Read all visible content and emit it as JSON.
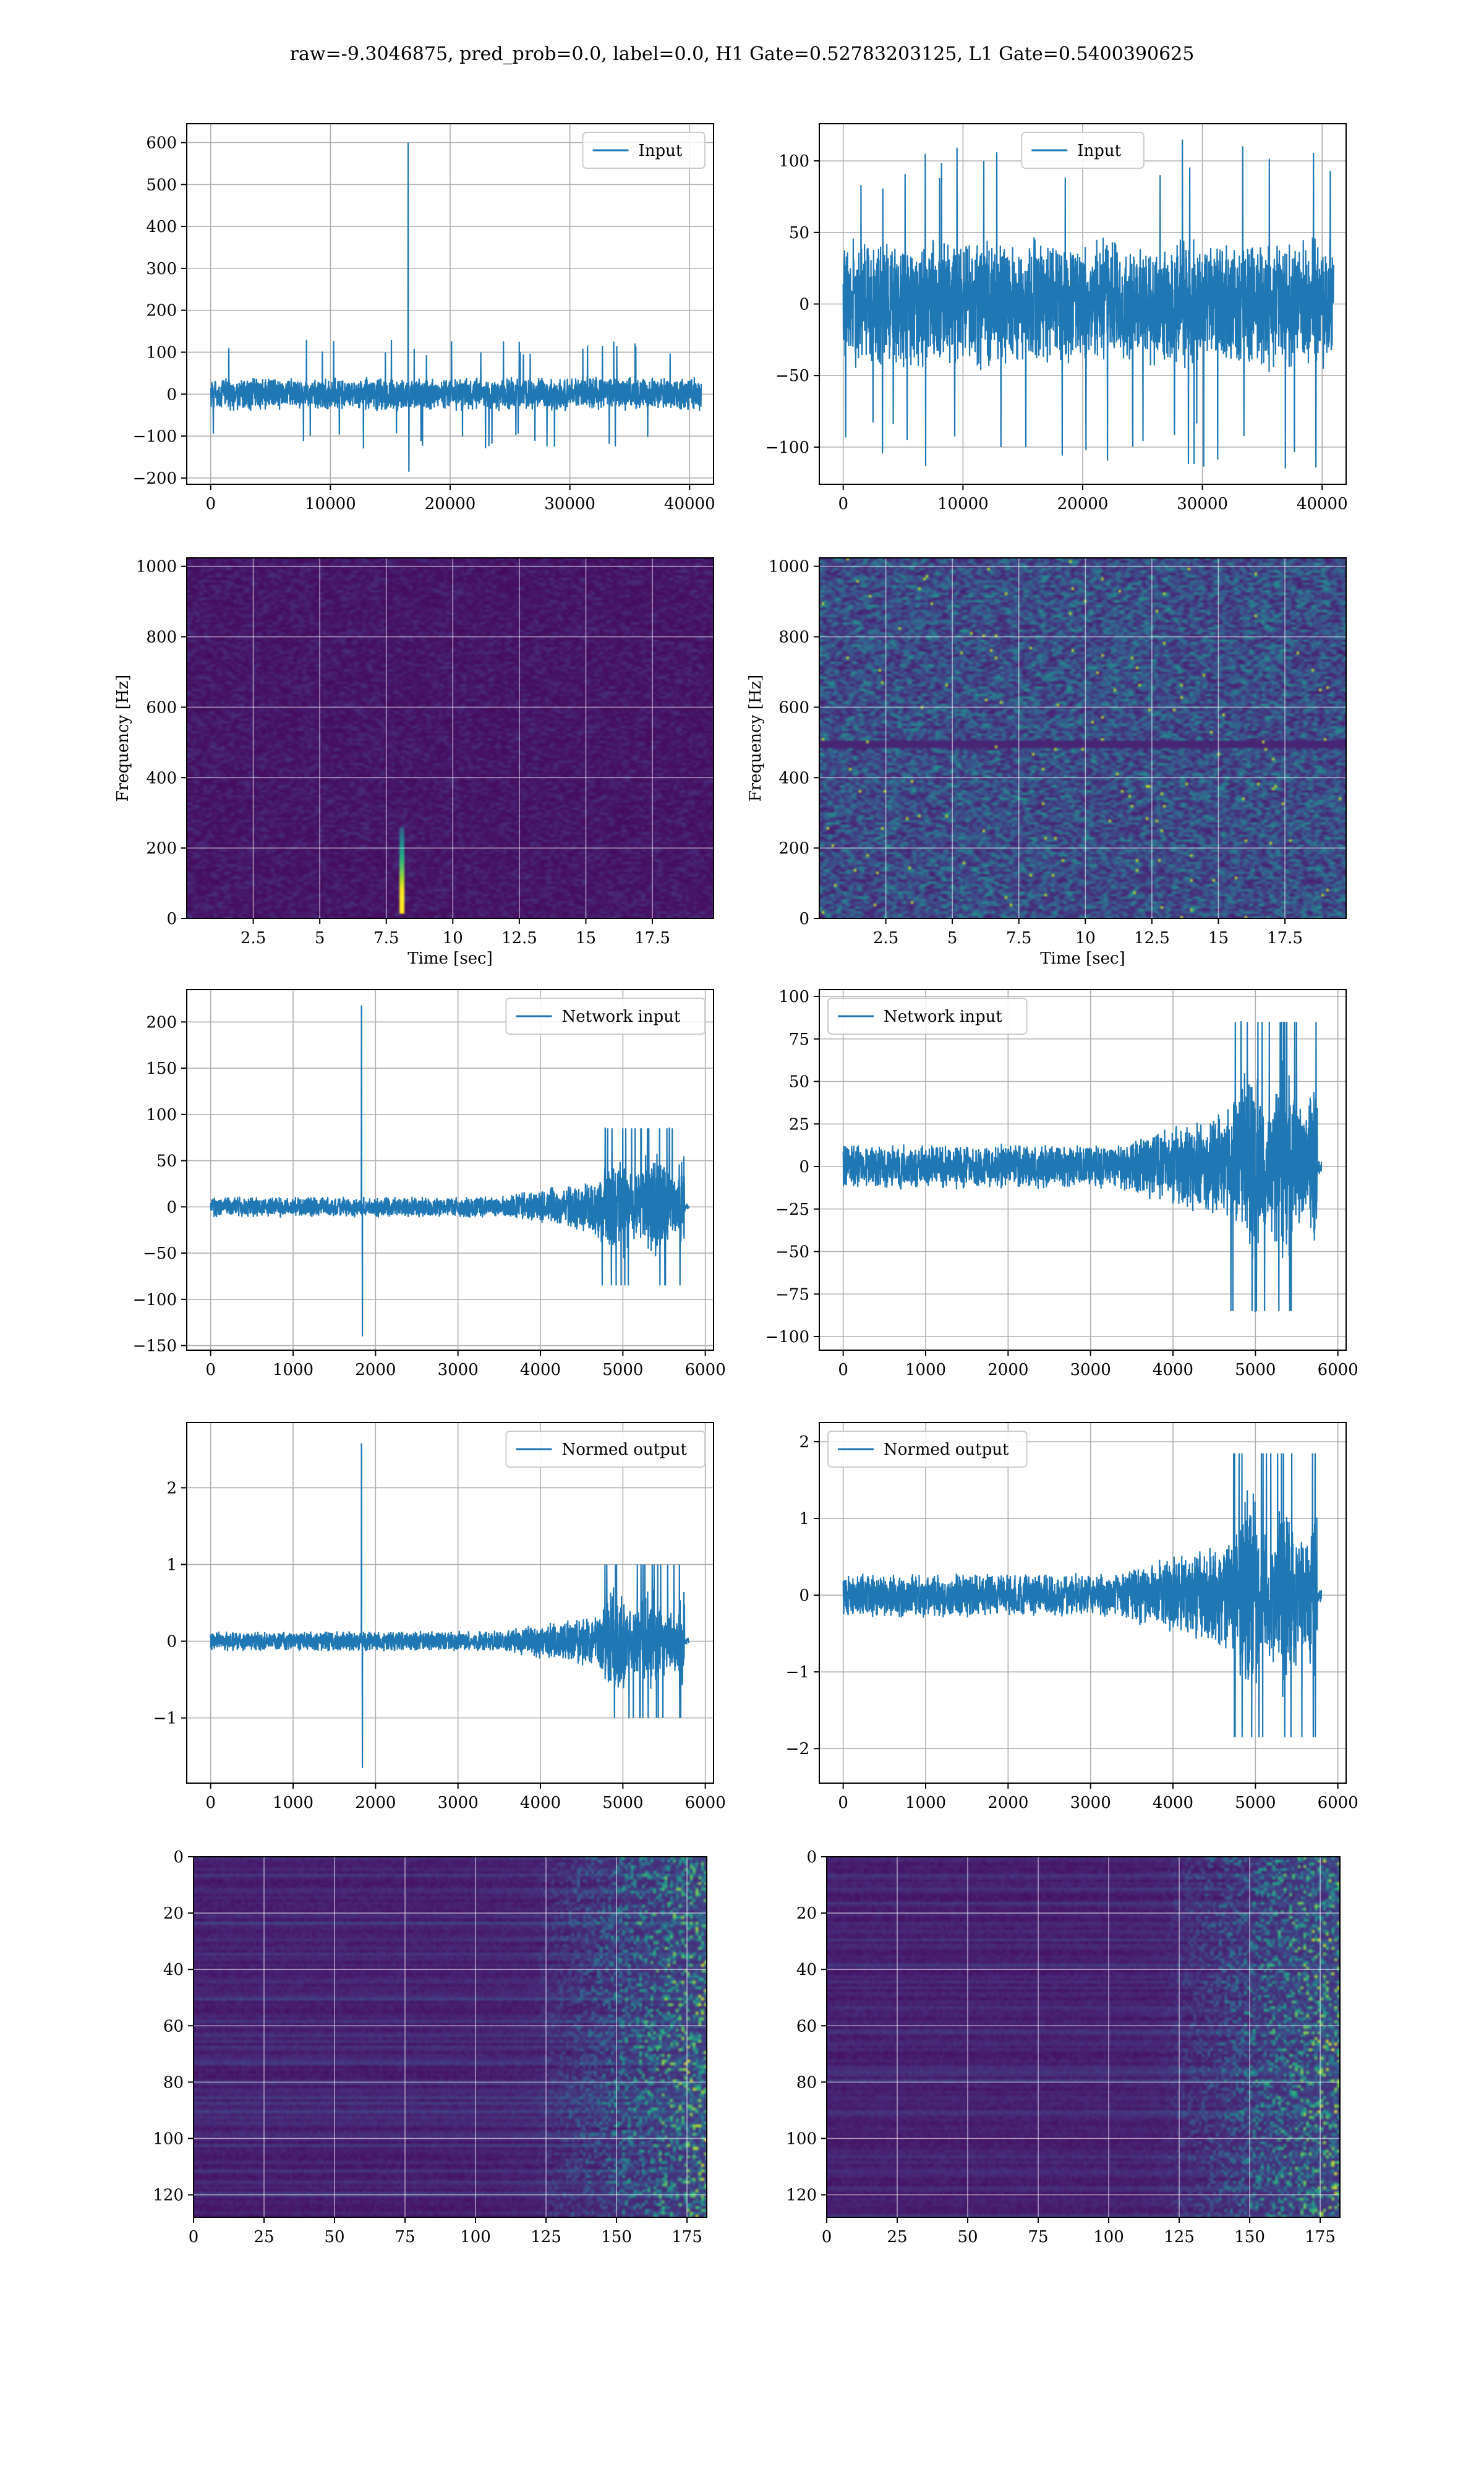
{
  "figure": {
    "suptitle": "raw=-9.3046875, pred_prob=0.0, label=0.0, H1 Gate=0.52783203125, L1 Gate=0.5400390625"
  },
  "colors": {
    "line": "#1f77b4",
    "grid": "#b0b0b0",
    "viridis_dark": "#440154",
    "viridis_mid": "#21918c",
    "viridis_light": "#fde725"
  },
  "chart_data": [
    {
      "id": "h1-input",
      "type": "line",
      "legend": "Input",
      "legend_loc": "upper right",
      "xlim": [
        -2000,
        42000
      ],
      "ylim": [
        -215,
        645
      ],
      "xticks": [
        0,
        10000,
        20000,
        30000,
        40000
      ],
      "yticks": [
        -200,
        -100,
        0,
        100,
        200,
        300,
        400,
        500,
        600
      ],
      "grid": true,
      "signal": {
        "x_range": [
          0,
          40960
        ],
        "noise_amplitude": 42,
        "peak_amplitude": 130,
        "trend": "flat",
        "spikes": [
          {
            "x": 16500,
            "y": 600
          },
          {
            "x": 16550,
            "y": -185
          }
        ]
      }
    },
    {
      "id": "l1-input",
      "type": "line",
      "legend": "Input",
      "legend_loc": "upper center",
      "xlim": [
        -2000,
        42000
      ],
      "ylim": [
        -126,
        126
      ],
      "xticks": [
        0,
        10000,
        20000,
        30000,
        40000
      ],
      "yticks": [
        -100,
        -50,
        0,
        50,
        100
      ],
      "grid": true,
      "signal": {
        "x_range": [
          0,
          40960
        ],
        "noise_amplitude": 48,
        "peak_amplitude": 115,
        "trend": "flat",
        "spikes": []
      }
    },
    {
      "id": "h1-spectrogram",
      "type": "heatmap",
      "xlabel": "Time [sec]",
      "ylabel": "Frequency [Hz]",
      "xlim": [
        0,
        19.8
      ],
      "ylim": [
        0,
        1024
      ],
      "xticks": [
        2.5,
        5.0,
        7.5,
        10.0,
        12.5,
        15.0,
        17.5
      ],
      "yticks": [
        0,
        200,
        400,
        600,
        800,
        1000
      ],
      "grid": true,
      "colormap": "viridis",
      "background_level": 0.07,
      "features": [
        {
          "kind": "vertical-streak",
          "t": 8.05,
          "f_range": [
            20,
            260
          ],
          "level": 0.95
        }
      ]
    },
    {
      "id": "l1-spectrogram",
      "type": "heatmap",
      "xlabel": "Time [sec]",
      "ylabel": "Frequency [Hz]",
      "xlim": [
        0,
        19.8
      ],
      "ylim": [
        0,
        1024
      ],
      "xticks": [
        2.5,
        5.0,
        7.5,
        10.0,
        12.5,
        15.0,
        17.5
      ],
      "yticks": [
        0,
        200,
        400,
        600,
        800,
        1000
      ],
      "grid": true,
      "colormap": "viridis",
      "background_level": 0.3,
      "features": [
        {
          "kind": "horizontal-band",
          "f": 500,
          "level": 0.1
        }
      ]
    },
    {
      "id": "h1-network-input",
      "type": "line",
      "legend": "Network input",
      "legend_loc": "upper right",
      "xlim": [
        -290,
        6100
      ],
      "ylim": [
        -155,
        235
      ],
      "xticks": [
        0,
        1000,
        2000,
        3000,
        4000,
        5000,
        6000
      ],
      "yticks": [
        -150,
        -100,
        -50,
        0,
        50,
        100,
        150,
        200
      ],
      "grid": true,
      "signal": {
        "x_range": [
          0,
          5800
        ],
        "base_amplitude": 12,
        "ramp_start": 3500,
        "burst_start": 4700,
        "burst_end": 5750,
        "burst_amplitude": 85,
        "tail_amplitude": 4,
        "spikes": [
          {
            "x": 1830,
            "y": 218
          },
          {
            "x": 1840,
            "y": -140
          }
        ]
      }
    },
    {
      "id": "l1-network-input",
      "type": "line",
      "legend": "Network input",
      "legend_loc": "upper left",
      "xlim": [
        -290,
        6100
      ],
      "ylim": [
        -108,
        104
      ],
      "xticks": [
        0,
        1000,
        2000,
        3000,
        4000,
        5000,
        6000
      ],
      "yticks": [
        -100,
        -75,
        -50,
        -25,
        0,
        25,
        50,
        75,
        100
      ],
      "grid": true,
      "signal": {
        "x_range": [
          0,
          5800
        ],
        "base_amplitude": 14,
        "ramp_start": 3300,
        "burst_start": 4700,
        "burst_end": 5750,
        "burst_amplitude": 85,
        "tail_amplitude": 5,
        "spikes": []
      }
    },
    {
      "id": "h1-normed-output",
      "type": "line",
      "legend": "Normed output",
      "legend_loc": "upper right",
      "xlim": [
        -290,
        6100
      ],
      "ylim": [
        -1.85,
        2.85
      ],
      "xticks": [
        0,
        1000,
        2000,
        3000,
        4000,
        5000,
        6000
      ],
      "yticks": [
        -1,
        0,
        1,
        2
      ],
      "grid": true,
      "signal": {
        "x_range": [
          0,
          5800
        ],
        "base_amplitude": 0.14,
        "ramp_start": 3500,
        "burst_start": 4700,
        "burst_end": 5750,
        "burst_amplitude": 1.0,
        "tail_amplitude": 0.05,
        "spikes": [
          {
            "x": 1830,
            "y": 2.58
          },
          {
            "x": 1840,
            "y": -1.65
          }
        ]
      }
    },
    {
      "id": "l1-normed-output",
      "type": "line",
      "legend": "Normed output",
      "legend_loc": "upper left",
      "xlim": [
        -290,
        6100
      ],
      "ylim": [
        -2.45,
        2.25
      ],
      "xticks": [
        0,
        1000,
        2000,
        3000,
        4000,
        5000,
        6000
      ],
      "yticks": [
        -2,
        -1,
        0,
        1,
        2
      ],
      "grid": true,
      "signal": {
        "x_range": [
          0,
          5800
        ],
        "base_amplitude": 0.3,
        "ramp_start": 3300,
        "burst_start": 4700,
        "burst_end": 5750,
        "burst_amplitude": 1.85,
        "tail_amplitude": 0.1,
        "spikes": []
      }
    },
    {
      "id": "h1-feature-map",
      "type": "heatmap",
      "xlim": [
        0,
        182
      ],
      "ylim": [
        128,
        0
      ],
      "xticks": [
        0,
        25,
        50,
        75,
        100,
        125,
        150,
        175
      ],
      "yticks": [
        0,
        20,
        40,
        60,
        80,
        100,
        120
      ],
      "grid": true,
      "colormap": "viridis",
      "rows": 128,
      "cols": 182,
      "activity_onset_col": 120
    },
    {
      "id": "l1-feature-map",
      "type": "heatmap",
      "xlim": [
        0,
        182
      ],
      "ylim": [
        128,
        0
      ],
      "xticks": [
        0,
        25,
        50,
        75,
        100,
        125,
        150,
        175
      ],
      "yticks": [
        0,
        20,
        40,
        60,
        80,
        100,
        120
      ],
      "grid": true,
      "colormap": "viridis",
      "rows": 128,
      "cols": 182,
      "activity_onset_col": 118
    }
  ]
}
